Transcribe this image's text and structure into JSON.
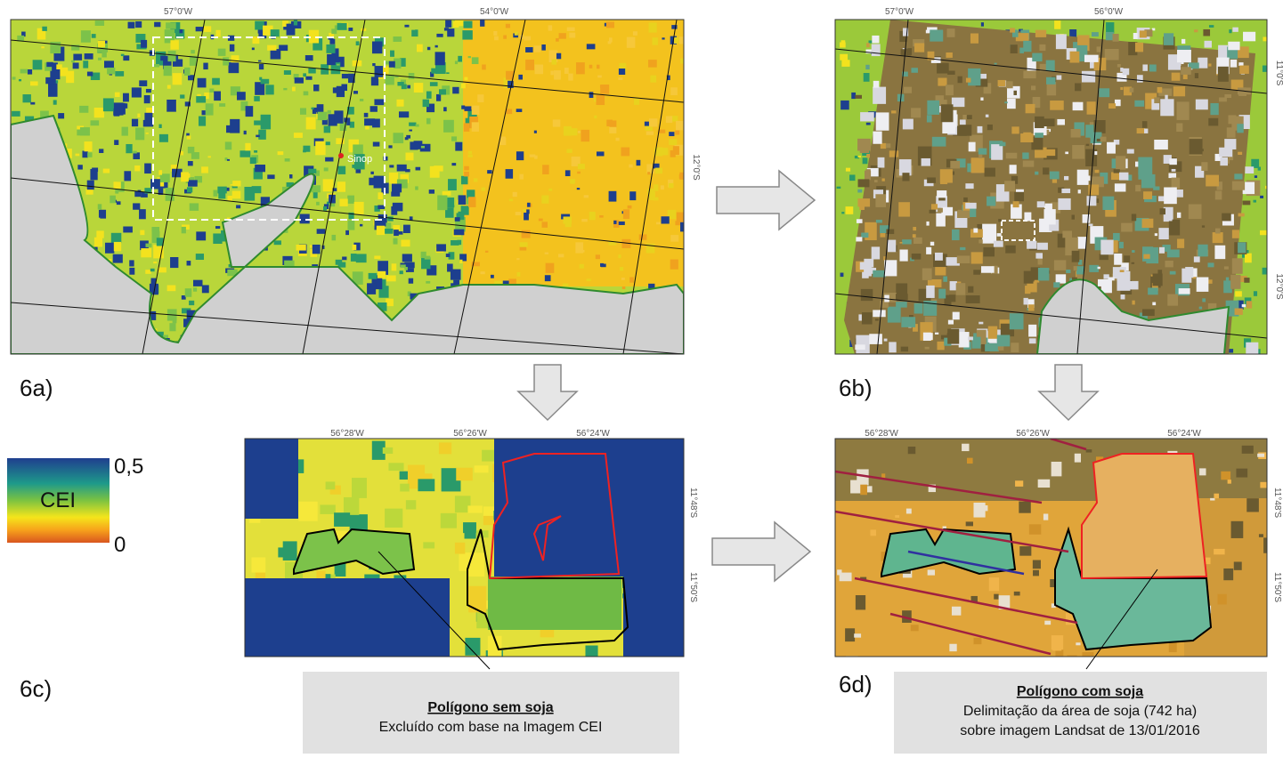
{
  "panels": [
    {
      "label": "6a)",
      "x_labels": [
        "57°0'W",
        "54°0'W"
      ],
      "y_labels": [
        "12°0'S"
      ],
      "place": "Sinop"
    },
    {
      "label": "6b)",
      "x_labels": [
        "57°0'W",
        "56°0'W"
      ],
      "y_labels": [
        "11°0'S",
        "12°0'S"
      ]
    },
    {
      "label": "6c)",
      "x_labels": [
        "56°28'W",
        "56°26'W",
        "56°24'W"
      ],
      "y_labels": [
        "11°48'S",
        "11°50'S"
      ],
      "callout": {
        "title": "Polígono sem soja",
        "lines": [
          "Excluído com base na Imagem CEI"
        ]
      }
    },
    {
      "label": "6d)",
      "x_labels": [
        "56°28'W",
        "56°26'W",
        "56°24'W"
      ],
      "y_labels": [
        "11°48'S",
        "11°50'S"
      ],
      "callout": {
        "title": "Polígono com soja",
        "lines": [
          "Delimitação da área de soja (742 ha)",
          "sobre imagem Landsat de 13/01/2016"
        ]
      }
    }
  ],
  "legend": {
    "max": "0,5",
    "title": "CEI",
    "min": "0"
  }
}
